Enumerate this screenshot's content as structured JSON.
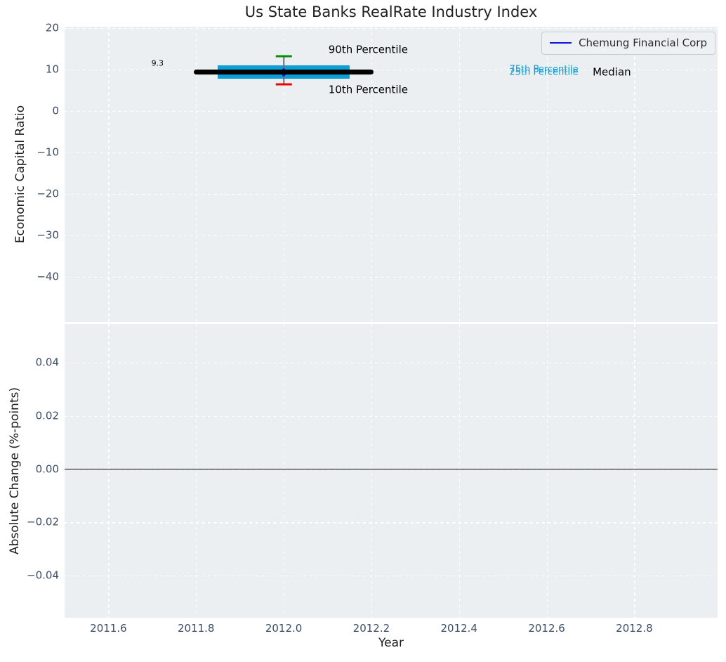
{
  "figure": {
    "title": "Us State Banks RealRate Industry Index",
    "title_color": "#212121",
    "background_color": "#ffffff",
    "axes_background_color": "#eceff1",
    "grid_color": "#ffffff",
    "tick_label_color": "#3d4d63",
    "axis_label_color": "#1c1c1c"
  },
  "legend": {
    "label": "Chemung Financial Corp",
    "line_color": "#1313dc",
    "position": "upper right"
  },
  "chart_data": [
    {
      "type": "box",
      "panel": "top",
      "title": "Us State Banks RealRate Industry Index",
      "ylabel": "Economic Capital Ratio",
      "xlim": [
        2011.5,
        2012.99
      ],
      "ylim": [
        -50.8,
        20.3
      ],
      "grid": true,
      "xticks": [
        2011.6,
        2011.8,
        2012.0,
        2012.2,
        2012.4,
        2012.6,
        2012.8
      ],
      "yticks": [
        20,
        10,
        0,
        -10,
        -20,
        -30,
        -40
      ],
      "ytick_labels": [
        "20",
        "10",
        "0",
        "−10",
        "−20",
        "−30",
        "−40"
      ],
      "industry_box": {
        "year": 2012.0,
        "p90": 13.2,
        "p75": 11.0,
        "median": 9.3,
        "p25": 7.7,
        "p10": 6.5,
        "median_line_xspan": [
          2011.8,
          2012.2
        ],
        "box_xspan": [
          2011.85,
          2012.15
        ],
        "cap_halfwidth_years": 0.018,
        "box_color": "#0d9fd4",
        "median_color": "#000000",
        "whisker_color": "#6e6e6e",
        "p90_cap_color": "#078f07",
        "p10_cap_color": "#f00000"
      },
      "company_series": {
        "name": "Chemung Financial Corp",
        "points": [
          {
            "x": 2012.0,
            "y": 9.3
          }
        ],
        "marker": "diamond",
        "color": "#1313dc"
      },
      "annotations": [
        {
          "text": "9.3",
          "x": 2011.712,
          "y": 11.3,
          "color": "#000000",
          "size": 11,
          "anchor": "center"
        },
        {
          "text": "90th Percentile",
          "x": 2012.102,
          "y": 14.7,
          "color": "#000000",
          "size": 15,
          "anchor": "left"
        },
        {
          "text": "10th Percentile",
          "x": 2012.102,
          "y": 5.1,
          "color": "#000000",
          "size": 15,
          "anchor": "left"
        },
        {
          "text": "75th Percentile",
          "x": 2012.515,
          "y": 9.85,
          "color": "#0d9fd4",
          "size": 13,
          "anchor": "left"
        },
        {
          "text": "25th Percentile",
          "x": 2012.515,
          "y": 9.05,
          "color": "#0d9fd4",
          "size": 13,
          "anchor": "left"
        },
        {
          "text": "Median",
          "x": 2012.705,
          "y": 9.3,
          "color": "#000000",
          "size": 15,
          "anchor": "left"
        }
      ]
    },
    {
      "type": "line",
      "panel": "bottom",
      "ylabel": "Absolute Change (%-points)",
      "xlabel": "Year",
      "xlim": [
        2011.5,
        2012.99
      ],
      "ylim": [
        -0.0558,
        0.0545
      ],
      "grid": true,
      "xticks": [
        2011.6,
        2011.8,
        2012.0,
        2012.2,
        2012.4,
        2012.6,
        2012.8
      ],
      "xtick_labels": [
        "2011.6",
        "2011.8",
        "2012.0",
        "2012.2",
        "2012.4",
        "2012.6",
        "2012.8"
      ],
      "yticks": [
        0.04,
        0.02,
        0.0,
        -0.02,
        -0.04
      ],
      "ytick_labels": [
        "0.04",
        "0.02",
        "0.00",
        "−0.02",
        "−0.04"
      ],
      "zero_line": {
        "y": 0.0,
        "color": "#000000"
      }
    }
  ]
}
